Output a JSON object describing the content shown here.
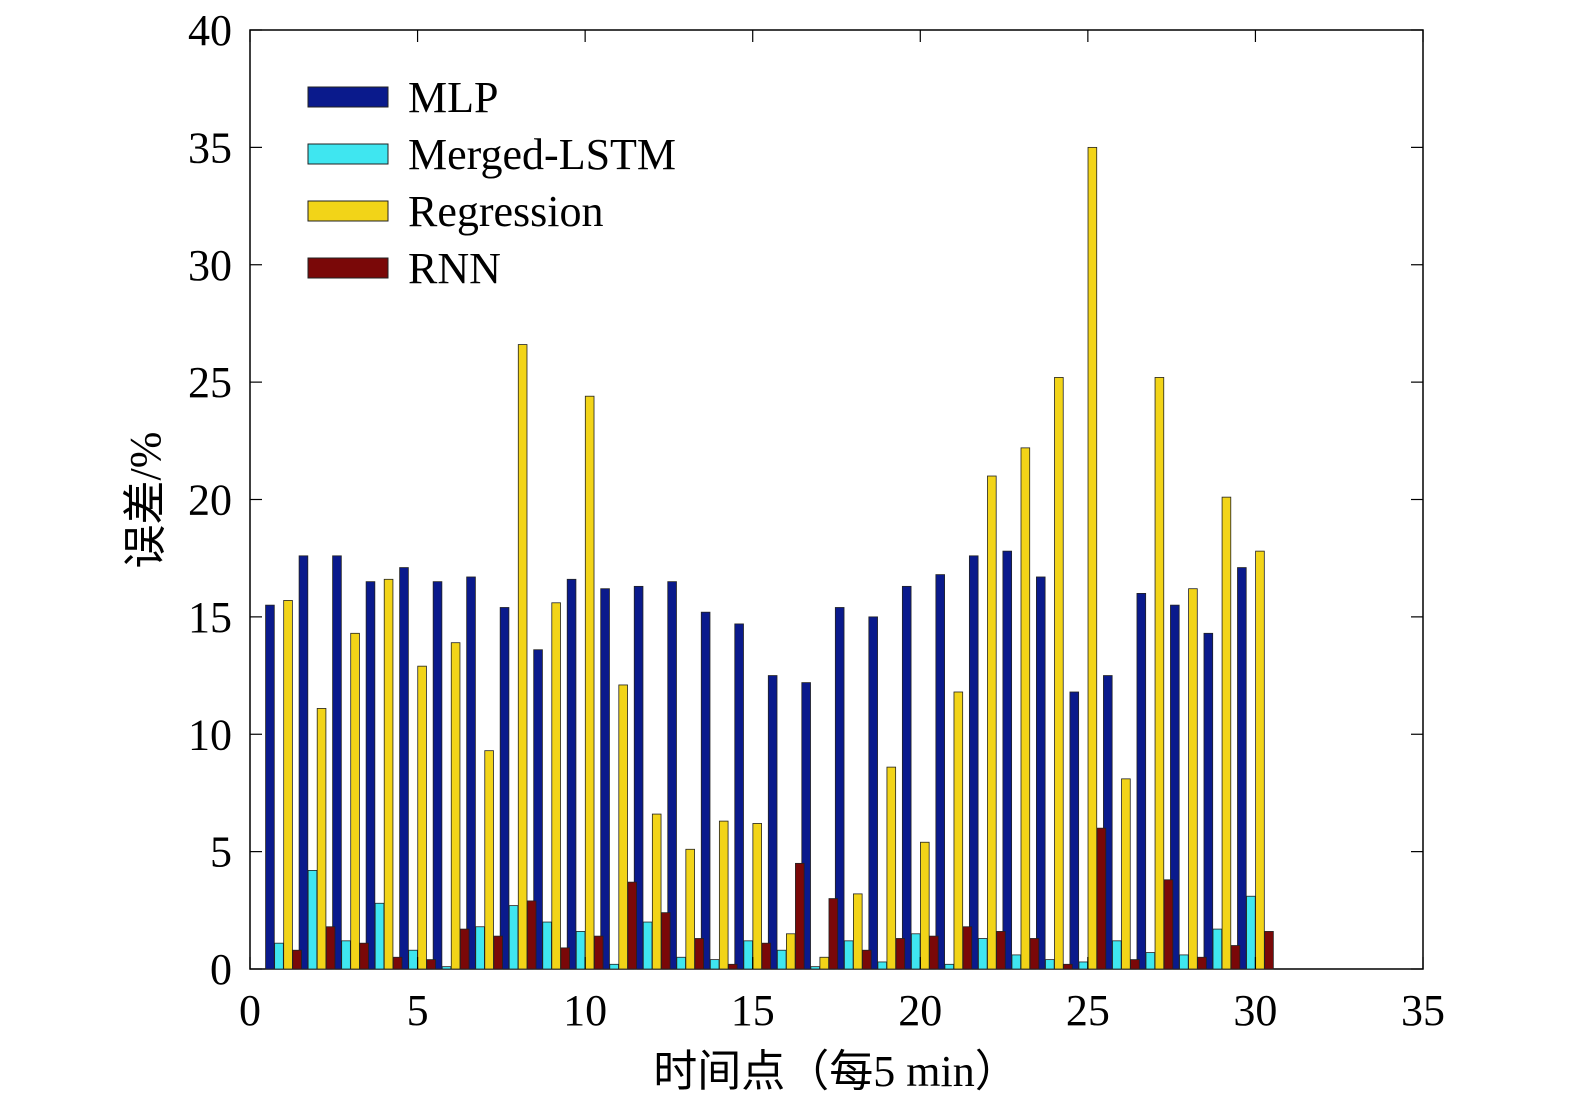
{
  "chart_data": {
    "type": "bar",
    "xlabel": "时间点（每5 min）",
    "ylabel": "误差/%",
    "xlim": [
      0,
      35
    ],
    "ylim": [
      0,
      40
    ],
    "xticks": [
      0,
      5,
      10,
      15,
      20,
      25,
      30,
      35
    ],
    "yticks": [
      0,
      5,
      10,
      15,
      20,
      25,
      30,
      35,
      40
    ],
    "grid": false,
    "legend_position": "top-left",
    "categories": [
      1,
      2,
      3,
      4,
      5,
      6,
      7,
      8,
      9,
      10,
      11,
      12,
      13,
      14,
      15,
      16,
      17,
      18,
      19,
      20,
      21,
      22,
      23,
      24,
      25,
      26,
      27,
      28,
      29,
      30
    ],
    "series": [
      {
        "name": "MLP",
        "color": "#0a1a8c",
        "values": [
          15.5,
          17.6,
          17.6,
          16.5,
          17.1,
          16.5,
          16.7,
          15.4,
          13.6,
          16.6,
          16.2,
          16.3,
          16.5,
          15.2,
          14.7,
          12.5,
          12.2,
          15.4,
          15.0,
          16.3,
          16.8,
          17.6,
          17.8,
          16.7,
          11.8,
          12.5,
          16.0,
          15.5,
          14.3,
          17.1
        ]
      },
      {
        "name": "Merged-LSTM",
        "color": "#3fe6f0",
        "values": [
          1.1,
          4.2,
          1.2,
          2.8,
          0.8,
          0.1,
          1.8,
          2.7,
          2.0,
          1.6,
          0.2,
          2.0,
          0.5,
          0.4,
          1.2,
          0.8,
          0.1,
          1.2,
          0.3,
          1.5,
          0.2,
          1.3,
          0.6,
          0.4,
          0.3,
          1.2,
          0.7,
          0.6,
          1.7,
          3.1
        ]
      },
      {
        "name": "Regression",
        "color": "#f2d418",
        "values": [
          15.7,
          11.1,
          14.3,
          16.6,
          12.9,
          13.9,
          9.3,
          26.6,
          15.6,
          24.4,
          12.1,
          6.6,
          5.1,
          6.3,
          6.2,
          1.5,
          0.5,
          3.2,
          8.6,
          5.4,
          11.8,
          21.0,
          22.2,
          25.2,
          35.0,
          8.1,
          25.2,
          16.2,
          20.1,
          17.8
        ]
      },
      {
        "name": "RNN",
        "color": "#7a0808",
        "values": [
          0.8,
          1.8,
          1.1,
          0.5,
          0.4,
          1.7,
          1.4,
          2.9,
          0.9,
          1.4,
          3.7,
          2.4,
          1.3,
          0.2,
          1.1,
          4.5,
          3.0,
          0.8,
          1.3,
          1.4,
          1.8,
          1.6,
          1.3,
          0.2,
          6.0,
          0.4,
          3.8,
          0.5,
          1.0,
          1.6
        ]
      }
    ]
  }
}
